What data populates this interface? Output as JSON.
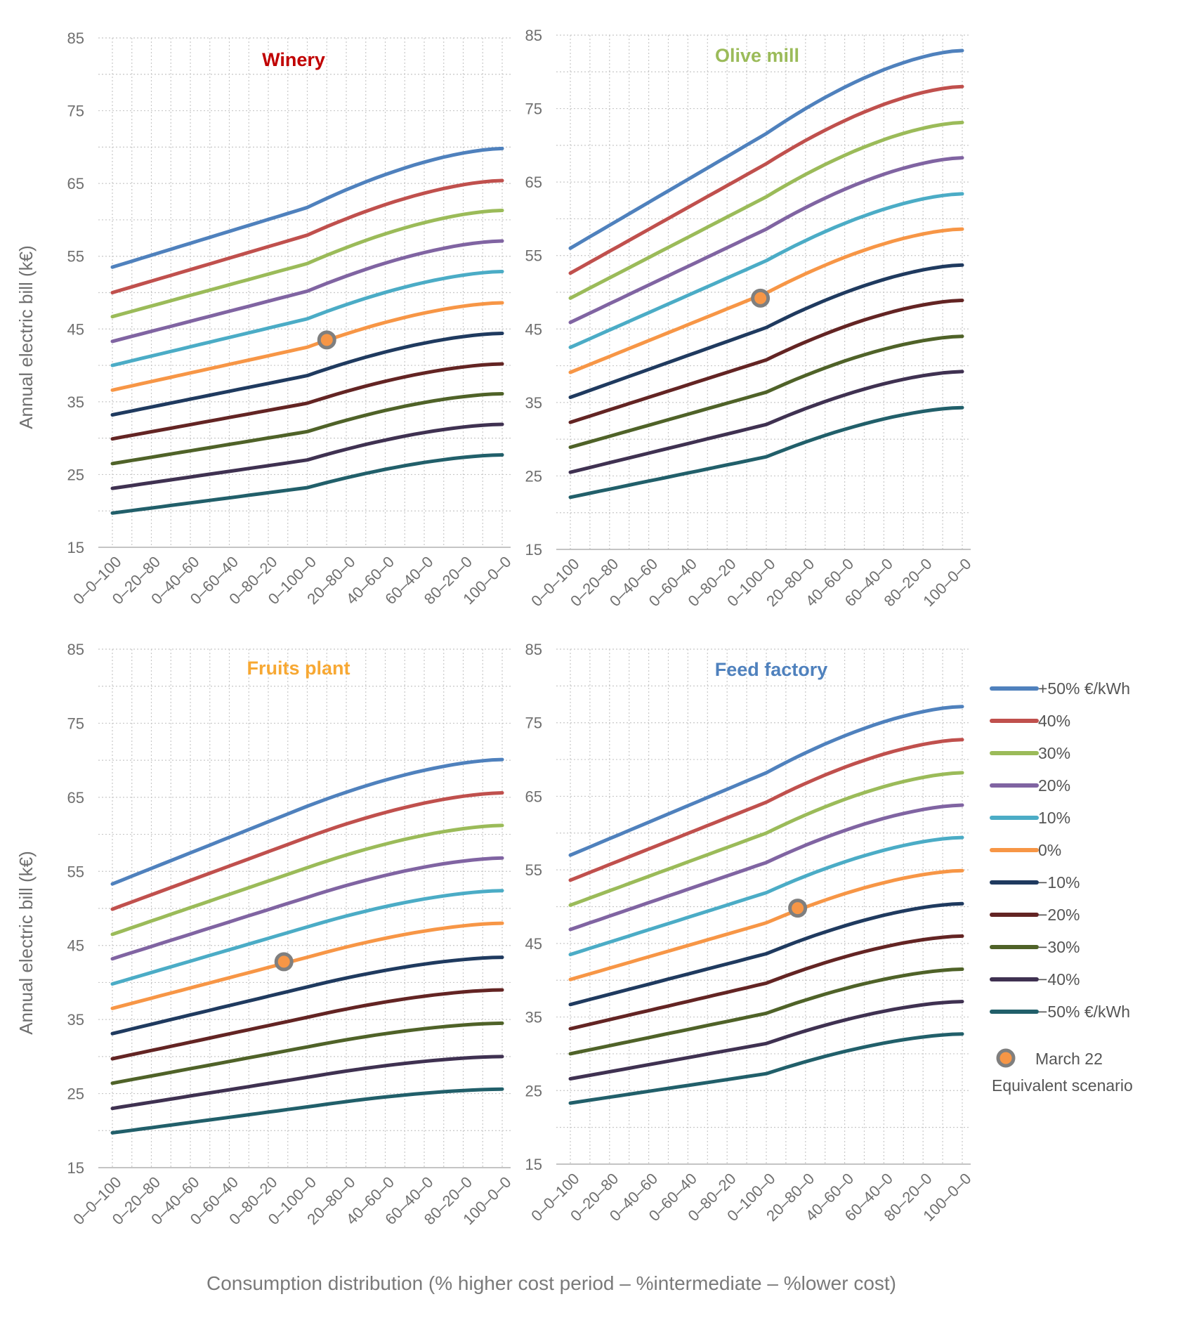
{
  "figure": {
    "xlabel": "Consumption distribution (% higher cost period – %intermediate – %lower cost)",
    "ylabel": "Annual electric bill (k€)"
  },
  "legend": {
    "items": [
      {
        "label": "+50% €/kWh",
        "color": "#4f81bd"
      },
      {
        "label": "40%",
        "color": "#c0504d"
      },
      {
        "label": "30%",
        "color": "#9bbb59"
      },
      {
        "label": "20%",
        "color": "#8064a2"
      },
      {
        "label": "10%",
        "color": "#4bacc6"
      },
      {
        "label": "0%",
        "color": "#f79646"
      },
      {
        "label": "−10%",
        "color": "#1f3a5f"
      },
      {
        "label": "−20%",
        "color": "#632423"
      },
      {
        "label": "−30%",
        "color": "#4f6228"
      },
      {
        "label": "−40%",
        "color": "#3f3151"
      },
      {
        "label": "−50% €/kWh",
        "color": "#215f6a"
      }
    ],
    "marker_label_1": "March 22",
    "marker_label_2": "Equivalent scenario",
    "marker_color": "#f79646",
    "marker_border": "#7f7f7f"
  },
  "chart_data": [
    {
      "type": "line",
      "title": "Winery",
      "title_color": "#c00000",
      "xlabel": "Consumption distribution (% higher cost period – %intermediate – %lower cost)",
      "ylabel": "Annual electric bill (k€)",
      "ylim": [
        15,
        85
      ],
      "yticks": [
        15,
        25,
        35,
        45,
        55,
        65,
        75,
        85
      ],
      "grid": true,
      "x_tick_labels": [
        "0–0–100",
        "0–20–80",
        "0–40–60",
        "0–60–40",
        "0–80–20",
        "0–100–0",
        "20–80–0",
        "40–60–0",
        "60–40–0",
        "80–20–0",
        "100–0–0"
      ],
      "series": [
        {
          "name": "+50% €/kWh",
          "start": 53.5,
          "knee": 61.7,
          "end": 69.8
        },
        {
          "name": "40%",
          "start": 50.0,
          "knee": 57.9,
          "end": 65.4
        },
        {
          "name": "30%",
          "start": 46.7,
          "knee": 54.0,
          "end": 61.3
        },
        {
          "name": "20%",
          "start": 43.3,
          "knee": 50.2,
          "end": 57.1
        },
        {
          "name": "10%",
          "start": 40.0,
          "knee": 46.4,
          "end": 52.9
        },
        {
          "name": "0%",
          "start": 36.6,
          "knee": 42.5,
          "end": 48.6
        },
        {
          "name": "−10%",
          "start": 33.2,
          "knee": 38.6,
          "end": 44.4
        },
        {
          "name": "−20%",
          "start": 29.9,
          "knee": 34.8,
          "end": 40.2
        },
        {
          "name": "−30%",
          "start": 26.5,
          "knee": 30.9,
          "end": 36.1
        },
        {
          "name": "−40%",
          "start": 23.1,
          "knee": 27.0,
          "end": 31.9
        },
        {
          "name": "−50% €/kWh",
          "start": 19.7,
          "knee": 23.2,
          "end": 27.7
        }
      ],
      "marker": {
        "x_index": 5.5,
        "y": 43.5
      }
    },
    {
      "type": "line",
      "title": "Olive mill",
      "title_color": "#9bbb59",
      "xlabel": "Consumption distribution (% higher cost period – %intermediate – %lower cost)",
      "ylabel": "Annual electric bill (k€)",
      "ylim": [
        15,
        85
      ],
      "yticks": [
        15,
        25,
        35,
        45,
        55,
        65,
        75,
        85
      ],
      "grid": true,
      "x_tick_labels": [
        "0–0–100",
        "0–20–80",
        "0–40–60",
        "0–60–40",
        "0–80–20",
        "0–100–0",
        "20–80–0",
        "40–60–0",
        "60–40–0",
        "80–20–0",
        "100–0–0"
      ],
      "series": [
        {
          "name": "+50% €/kWh",
          "start": 56.0,
          "knee": 71.6,
          "end": 82.9
        },
        {
          "name": "40%",
          "start": 52.6,
          "knee": 67.5,
          "end": 78.0
        },
        {
          "name": "30%",
          "start": 49.2,
          "knee": 63.0,
          "end": 73.1
        },
        {
          "name": "20%",
          "start": 45.9,
          "knee": 58.6,
          "end": 68.3
        },
        {
          "name": "10%",
          "start": 42.5,
          "knee": 54.3,
          "end": 63.4
        },
        {
          "name": "0%",
          "start": 39.1,
          "knee": 49.9,
          "end": 58.6
        },
        {
          "name": "−10%",
          "start": 35.7,
          "knee": 45.2,
          "end": 53.7
        },
        {
          "name": "−20%",
          "start": 32.3,
          "knee": 40.8,
          "end": 48.9
        },
        {
          "name": "−30%",
          "start": 28.9,
          "knee": 36.4,
          "end": 44.0
        },
        {
          "name": "−40%",
          "start": 25.5,
          "knee": 32.0,
          "end": 39.2
        },
        {
          "name": "−50% €/kWh",
          "start": 22.1,
          "knee": 27.6,
          "end": 34.3
        }
      ],
      "marker": {
        "x_index": 4.85,
        "y": 49.2
      }
    },
    {
      "type": "line",
      "title": "Fruits plant",
      "title_color": "#f7a833",
      "xlabel": "Consumption distribution (% higher cost period – %intermediate – %lower cost)",
      "ylabel": "Annual electric bill (k€)",
      "ylim": [
        15,
        85
      ],
      "yticks": [
        15,
        25,
        35,
        45,
        55,
        65,
        75,
        85
      ],
      "grid": true,
      "x_tick_labels": [
        "0–0–100",
        "0–20–80",
        "0–40–60",
        "0–60–40",
        "0–80–20",
        "0–100–0",
        "20–80–0",
        "40–60–0",
        "60–40–0",
        "80–20–0",
        "100–0–0"
      ],
      "series": [
        {
          "name": "+50% €/kWh",
          "start": 53.3,
          "knee": 63.8,
          "end": 70.1
        },
        {
          "name": "40%",
          "start": 49.9,
          "knee": 59.6,
          "end": 65.6
        },
        {
          "name": "30%",
          "start": 46.5,
          "knee": 55.5,
          "end": 61.2
        },
        {
          "name": "20%",
          "start": 43.2,
          "knee": 51.5,
          "end": 56.8
        },
        {
          "name": "10%",
          "start": 39.8,
          "knee": 47.5,
          "end": 52.4
        },
        {
          "name": "0%",
          "start": 36.5,
          "knee": 43.4,
          "end": 48.0
        },
        {
          "name": "−10%",
          "start": 33.1,
          "knee": 39.4,
          "end": 43.4
        },
        {
          "name": "−20%",
          "start": 29.7,
          "knee": 35.3,
          "end": 39.0
        },
        {
          "name": "−30%",
          "start": 26.4,
          "knee": 31.3,
          "end": 34.5
        },
        {
          "name": "−40%",
          "start": 23.0,
          "knee": 27.2,
          "end": 30.0
        },
        {
          "name": "−50% €/kWh",
          "start": 19.7,
          "knee": 23.2,
          "end": 25.6
        }
      ],
      "marker": {
        "x_index": 4.4,
        "y": 42.8
      }
    },
    {
      "type": "line",
      "title": "Feed factory",
      "title_color": "#4f81bd",
      "xlabel": "Consumption distribution (% higher cost period – %intermediate – %lower cost)",
      "ylabel": "Annual electric bill (k€)",
      "ylim": [
        15,
        85
      ],
      "yticks": [
        15,
        25,
        35,
        45,
        55,
        65,
        75,
        85
      ],
      "grid": true,
      "x_tick_labels": [
        "0–0–100",
        "0–20–80",
        "0–40–60",
        "0–60–40",
        "0–80–20",
        "0–100–0",
        "20–80–0",
        "40–60–0",
        "60–40–0",
        "80–20–0",
        "100–0–0"
      ],
      "series": [
        {
          "name": "+50% €/kWh",
          "start": 57.0,
          "knee": 68.2,
          "end": 77.2
        },
        {
          "name": "40%",
          "start": 53.6,
          "knee": 64.2,
          "end": 72.7
        },
        {
          "name": "30%",
          "start": 50.2,
          "knee": 60.0,
          "end": 68.2
        },
        {
          "name": "20%",
          "start": 46.9,
          "knee": 56.0,
          "end": 63.8
        },
        {
          "name": "10%",
          "start": 43.5,
          "knee": 51.9,
          "end": 59.4
        },
        {
          "name": "0%",
          "start": 40.1,
          "knee": 47.8,
          "end": 54.9
        },
        {
          "name": "−10%",
          "start": 36.7,
          "knee": 43.6,
          "end": 50.4
        },
        {
          "name": "−20%",
          "start": 33.4,
          "knee": 39.6,
          "end": 46.0
        },
        {
          "name": "−30%",
          "start": 30.0,
          "knee": 35.5,
          "end": 41.5
        },
        {
          "name": "−40%",
          "start": 26.6,
          "knee": 31.4,
          "end": 37.1
        },
        {
          "name": "−50% €/kWh",
          "start": 23.3,
          "knee": 27.3,
          "end": 32.7
        }
      ],
      "marker": {
        "x_index": 5.8,
        "y": 49.8
      }
    }
  ]
}
